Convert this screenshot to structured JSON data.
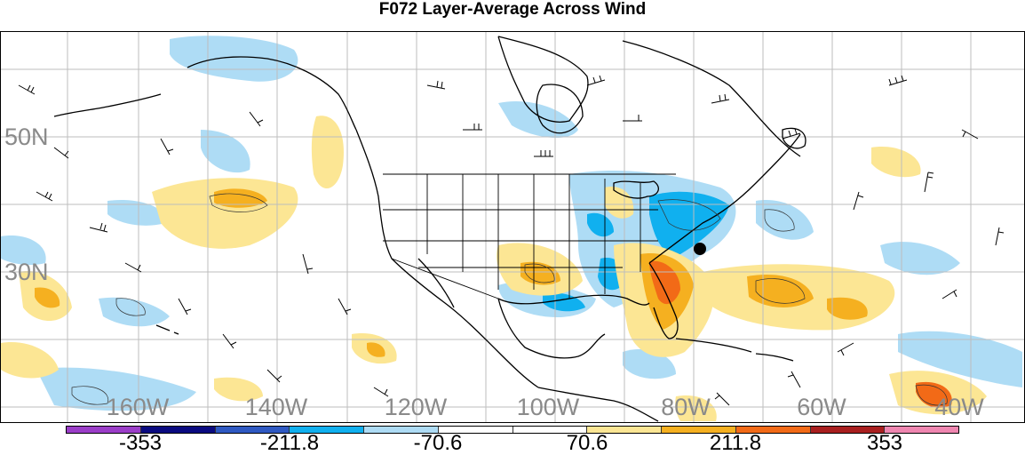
{
  "title": "F072 Layer-Average Across Wind",
  "lat_labels": [
    {
      "text": "50N"
    },
    {
      "text": "30N"
    }
  ],
  "lon_labels": [
    {
      "text": "160W"
    },
    {
      "text": "140W"
    },
    {
      "text": "120W"
    },
    {
      "text": "100W"
    },
    {
      "text": "80W"
    },
    {
      "text": "60W"
    },
    {
      "text": "40W"
    }
  ],
  "colorbar": {
    "colors": [
      "#9b3ec8",
      "#0a0a80",
      "#2f59c2",
      "#10b0ef",
      "#aedcf5",
      "#ffffff",
      "#ffffff",
      "#fce694",
      "#f5b020",
      "#f26a17",
      "#a91f1f",
      "#ef86b0"
    ],
    "labels": [
      "-353",
      "-211.8",
      "-70.6",
      "70.6",
      "211.8",
      "353"
    ]
  },
  "colors": {
    "warm_light": "#fce694",
    "warm_mid": "#f5b020",
    "warm_strong": "#f26a17",
    "cool_light": "#aedcf5",
    "cool_mid": "#10b0ef",
    "grid": "#bdbdbd",
    "coast": "#000000"
  },
  "marker": "black-dot"
}
